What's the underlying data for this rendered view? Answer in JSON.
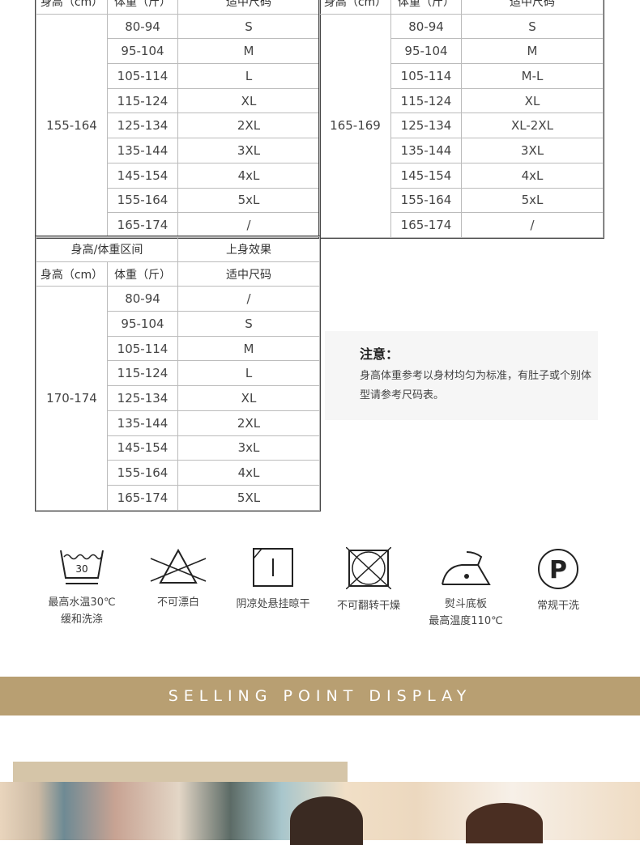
{
  "tables": [
    {
      "header_top": [
        "身高（cm）",
        "体重（斤）",
        "适中尺码"
      ],
      "height": "155-164",
      "rows": [
        [
          "80-94",
          "S"
        ],
        [
          "95-104",
          "M"
        ],
        [
          "105-114",
          "L"
        ],
        [
          "115-124",
          "XL"
        ],
        [
          "125-134",
          "2XL"
        ],
        [
          "135-144",
          "3XL"
        ],
        [
          "145-154",
          "4xL"
        ],
        [
          "155-164",
          "5xL"
        ],
        [
          "165-174",
          "/"
        ]
      ]
    },
    {
      "header_top": [
        "身高（cm）",
        "体重（斤）",
        "适中尺码"
      ],
      "height": "165-169",
      "rows": [
        [
          "80-94",
          "S"
        ],
        [
          "95-104",
          "M"
        ],
        [
          "105-114",
          "M-L"
        ],
        [
          "115-124",
          "XL"
        ],
        [
          "125-134",
          "XL-2XL"
        ],
        [
          "135-144",
          "3XL"
        ],
        [
          "145-154",
          "4xL"
        ],
        [
          "155-164",
          "5xL"
        ],
        [
          "165-174",
          "/"
        ]
      ]
    },
    {
      "header_group": [
        "身高/体重区间",
        "上身效果"
      ],
      "header": [
        "身高（cm）",
        "体重（斤）",
        "适中尺码"
      ],
      "height": "170-174",
      "rows": [
        [
          "80-94",
          "/"
        ],
        [
          "95-104",
          "S"
        ],
        [
          "105-114",
          "M"
        ],
        [
          "115-124",
          "L"
        ],
        [
          "125-134",
          "XL"
        ],
        [
          "135-144",
          "2XL"
        ],
        [
          "145-154",
          "3xL"
        ],
        [
          "155-164",
          "4xL"
        ],
        [
          "165-174",
          "5XL"
        ]
      ]
    }
  ],
  "note": {
    "title": "注意：",
    "body": "身高体重参考以身材均匀为标准，有肚子或个别体型请参考尺码表。"
  },
  "care": [
    {
      "icon": "wash-30-icon",
      "temp": "30",
      "line1": "最高水温30℃",
      "line2": "缓和洗涤"
    },
    {
      "icon": "no-bleach-icon",
      "line1": "不可漂白",
      "line2": ""
    },
    {
      "icon": "dry-in-shade-icon",
      "line1": "阴凉处悬挂晾干",
      "line2": ""
    },
    {
      "icon": "no-tumble-dry-icon",
      "line1": "不可翻转干燥",
      "line2": ""
    },
    {
      "icon": "iron-icon",
      "line1": "熨斗底板",
      "line2": "最高温度110℃"
    },
    {
      "icon": "dry-clean-p-icon",
      "letter": "P",
      "line1": "常规干洗",
      "line2": ""
    }
  ],
  "banner": {
    "text": "SELLING POINT DISPLAY",
    "color": "#b89f72"
  }
}
